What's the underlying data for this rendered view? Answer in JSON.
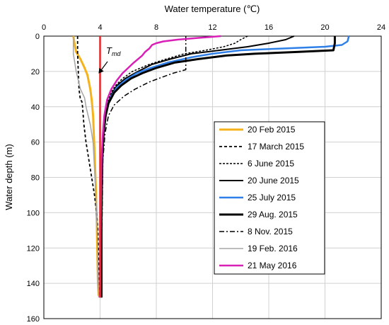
{
  "chart_data": {
    "type": "line",
    "title": "",
    "xlabel": "Water temperature (℃)",
    "ylabel": "Water depth (m)",
    "x_axis_position": "top",
    "y_axis_inverted": true,
    "xlim": [
      0,
      24
    ],
    "ylim": [
      0,
      160
    ],
    "xticks": [
      "0",
      "4",
      "8",
      "12",
      "16",
      "20",
      "24"
    ],
    "yticks": [
      "0",
      "20",
      "40",
      "60",
      "80",
      "100",
      "120",
      "140",
      "160"
    ],
    "grid": true,
    "legend_position": "right-center",
    "reference_line": {
      "name": "Tmd",
      "label_main": "T",
      "label_sub": "md",
      "temperature": 4.0,
      "color": "#e8262a"
    },
    "series": [
      {
        "name": "20 Feb 2015",
        "color": "#f5b21a",
        "dash": "solid",
        "width": 3,
        "points": [
          [
            2.1,
            0
          ],
          [
            2.2,
            5
          ],
          [
            2.3,
            9
          ],
          [
            2.6,
            13
          ],
          [
            2.9,
            18
          ],
          [
            3.1,
            22
          ],
          [
            3.2,
            26
          ],
          [
            3.3,
            30
          ],
          [
            3.4,
            36
          ],
          [
            3.5,
            45
          ],
          [
            3.55,
            55
          ],
          [
            3.6,
            65
          ],
          [
            3.65,
            75
          ],
          [
            3.7,
            85
          ],
          [
            3.75,
            100
          ],
          [
            3.8,
            120
          ],
          [
            3.85,
            140
          ],
          [
            3.9,
            147
          ]
        ]
      },
      {
        "name": "17 March 2015",
        "color": "#000000",
        "dash": "4,3",
        "width": 1.8,
        "points": [
          [
            2.4,
            0
          ],
          [
            2.4,
            10
          ],
          [
            2.45,
            20
          ],
          [
            2.5,
            30
          ],
          [
            2.6,
            36
          ],
          [
            2.7,
            37
          ],
          [
            2.75,
            40
          ],
          [
            2.85,
            50
          ],
          [
            3.0,
            60
          ],
          [
            3.2,
            70
          ],
          [
            3.4,
            80
          ],
          [
            3.6,
            90
          ],
          [
            3.75,
            100
          ],
          [
            3.85,
            110
          ],
          [
            3.9,
            130
          ],
          [
            3.95,
            148
          ]
        ]
      },
      {
        "name": "6 June 2015",
        "color": "#000000",
        "dash": "3,2",
        "width": 1.5,
        "points": [
          [
            14.5,
            0
          ],
          [
            14.0,
            2
          ],
          [
            13.6,
            4
          ],
          [
            12.8,
            6
          ],
          [
            11.5,
            8
          ],
          [
            10.0,
            10
          ],
          [
            8.7,
            13
          ],
          [
            7.5,
            16
          ],
          [
            6.3,
            20
          ],
          [
            5.6,
            24
          ],
          [
            5.1,
            28
          ],
          [
            4.7,
            33
          ],
          [
            4.45,
            40
          ],
          [
            4.3,
            50
          ],
          [
            4.2,
            60
          ],
          [
            4.15,
            80
          ],
          [
            4.1,
            100
          ],
          [
            4.1,
            130
          ],
          [
            4.1,
            148
          ]
        ]
      },
      {
        "name": "20 June 2015",
        "color": "#000000",
        "dash": "solid",
        "width": 2,
        "points": [
          [
            17.8,
            0
          ],
          [
            17.2,
            2
          ],
          [
            16.0,
            4
          ],
          [
            14.5,
            6
          ],
          [
            12.5,
            8
          ],
          [
            10.5,
            10
          ],
          [
            9.0,
            13
          ],
          [
            7.7,
            16
          ],
          [
            6.7,
            20
          ],
          [
            5.8,
            24
          ],
          [
            5.2,
            28
          ],
          [
            4.8,
            33
          ],
          [
            4.5,
            40
          ],
          [
            4.3,
            50
          ],
          [
            4.2,
            60
          ],
          [
            4.15,
            80
          ],
          [
            4.1,
            110
          ],
          [
            4.1,
            148
          ]
        ]
      },
      {
        "name": "25 July 2015",
        "color": "#2e7fe8",
        "dash": "solid",
        "width": 2.5,
        "points": [
          [
            21.7,
            0
          ],
          [
            21.6,
            3
          ],
          [
            21.2,
            5
          ],
          [
            20.0,
            6
          ],
          [
            17.0,
            7
          ],
          [
            14.0,
            8
          ],
          [
            12.0,
            10
          ],
          [
            10.5,
            12
          ],
          [
            8.8,
            15
          ],
          [
            7.6,
            18
          ],
          [
            6.6,
            21
          ],
          [
            5.8,
            25
          ],
          [
            5.2,
            29
          ],
          [
            4.8,
            34
          ],
          [
            4.5,
            40
          ],
          [
            4.3,
            50
          ],
          [
            4.2,
            60
          ],
          [
            4.15,
            80
          ],
          [
            4.1,
            110
          ],
          [
            4.1,
            148
          ]
        ]
      },
      {
        "name": "29 Aug. 2015",
        "color": "#000000",
        "dash": "solid",
        "width": 3,
        "points": [
          [
            20.7,
            0
          ],
          [
            20.7,
            4
          ],
          [
            20.6,
            8
          ],
          [
            18.0,
            9
          ],
          [
            15.0,
            10
          ],
          [
            13.0,
            11
          ],
          [
            11.0,
            13
          ],
          [
            9.3,
            15
          ],
          [
            8.0,
            18
          ],
          [
            7.0,
            21
          ],
          [
            6.2,
            24
          ],
          [
            5.5,
            28
          ],
          [
            5.0,
            32
          ],
          [
            4.6,
            38
          ],
          [
            4.4,
            45
          ],
          [
            4.25,
            55
          ],
          [
            4.15,
            70
          ],
          [
            4.1,
            100
          ],
          [
            4.1,
            148
          ]
        ]
      },
      {
        "name": "8 Nov. 2015",
        "color": "#000000",
        "dash": "7,3,2,3",
        "width": 1.5,
        "points": [
          [
            10.1,
            0
          ],
          [
            10.1,
            10
          ],
          [
            10.1,
            19
          ],
          [
            9.2,
            21
          ],
          [
            8.5,
            23
          ],
          [
            7.5,
            26
          ],
          [
            6.5,
            30
          ],
          [
            5.7,
            34
          ],
          [
            5.0,
            39
          ],
          [
            4.6,
            45
          ],
          [
            4.35,
            55
          ],
          [
            4.2,
            70
          ],
          [
            4.15,
            100
          ],
          [
            4.1,
            148
          ]
        ]
      },
      {
        "name": "19 Feb. 2016",
        "color": "#a5a5a5",
        "dash": "solid",
        "width": 1.5,
        "points": [
          [
            2.1,
            0
          ],
          [
            2.1,
            10
          ],
          [
            2.3,
            20
          ],
          [
            2.6,
            30
          ],
          [
            2.9,
            35
          ],
          [
            3.0,
            40
          ],
          [
            3.3,
            50
          ],
          [
            3.5,
            60
          ],
          [
            3.6,
            75
          ],
          [
            3.7,
            90
          ],
          [
            3.8,
            110
          ],
          [
            3.85,
            130
          ],
          [
            3.9,
            148
          ]
        ]
      },
      {
        "name": "21 May 2016",
        "color": "#d81fb6",
        "dash": "solid",
        "width": 2.5,
        "points": [
          [
            12.6,
            0
          ],
          [
            11.0,
            1
          ],
          [
            9.5,
            2
          ],
          [
            8.5,
            3
          ],
          [
            8.0,
            4
          ],
          [
            7.7,
            5
          ],
          [
            7.5,
            7
          ],
          [
            7.2,
            9
          ],
          [
            7.0,
            11
          ],
          [
            6.7,
            13
          ],
          [
            6.4,
            15
          ],
          [
            6.0,
            18
          ],
          [
            5.6,
            21
          ],
          [
            5.2,
            25
          ],
          [
            4.8,
            30
          ],
          [
            4.5,
            36
          ],
          [
            4.3,
            45
          ],
          [
            4.2,
            55
          ],
          [
            4.1,
            70
          ],
          [
            4.05,
            100
          ],
          [
            4.0,
            148
          ]
        ]
      }
    ]
  }
}
